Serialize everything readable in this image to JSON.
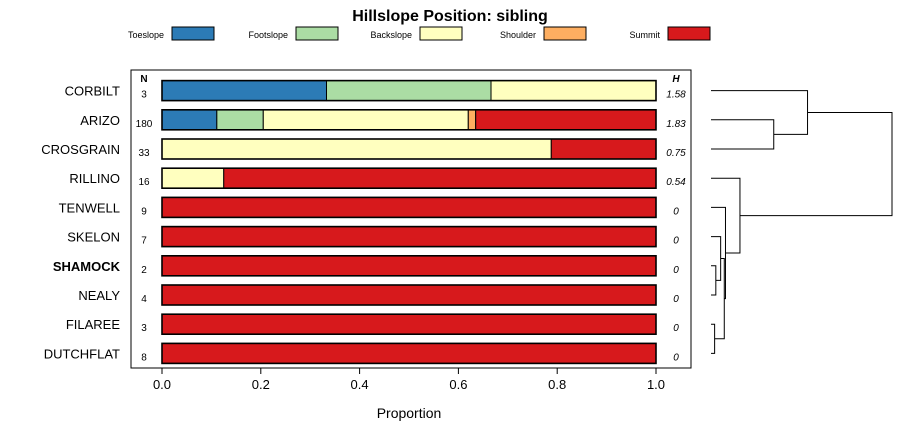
{
  "chart_data": {
    "type": "stacked-bar-horizontal",
    "title": "Hillslope Position: sibling",
    "xlabel": "Proportion",
    "xlim": [
      0,
      1
    ],
    "xticks": [
      "0.0",
      "0.2",
      "0.4",
      "0.6",
      "0.8",
      "1.0"
    ],
    "n_header": "N",
    "h_header": "H",
    "highlight": "SHAMOCK",
    "legend": [
      {
        "name": "Toeslope",
        "color": "#2c7bb6"
      },
      {
        "name": "Footslope",
        "color": "#abdda4"
      },
      {
        "name": "Backslope",
        "color": "#ffffbf"
      },
      {
        "name": "Shoulder",
        "color": "#fdae61"
      },
      {
        "name": "Summit",
        "color": "#d7191c"
      }
    ],
    "categories": [
      "CORBILT",
      "ARIZO",
      "CROSGRAIN",
      "RILLINO",
      "TENWELL",
      "SKELON",
      "SHAMOCK",
      "NEALY",
      "FILAREE",
      "DUTCHFLAT"
    ],
    "n": [
      "3",
      "180",
      "33",
      "16",
      "9",
      "7",
      "2",
      "4",
      "3",
      "8"
    ],
    "h": [
      "1.58",
      "1.83",
      "0.75",
      "0.54",
      "0",
      "0",
      "0",
      "0",
      "0",
      "0"
    ],
    "proportions": [
      [
        0.333,
        0.333,
        0.334,
        0,
        0
      ],
      [
        0.111,
        0.094,
        0.415,
        0.015,
        0.365
      ],
      [
        0,
        0,
        0.788,
        0,
        0.212
      ],
      [
        0,
        0,
        0.125,
        0,
        0.875
      ],
      [
        0,
        0,
        0,
        0,
        1
      ],
      [
        0,
        0,
        0,
        0,
        1
      ],
      [
        0,
        0,
        0,
        0,
        1
      ],
      [
        0,
        0,
        0,
        0,
        1
      ],
      [
        0,
        0,
        0,
        0,
        1
      ],
      [
        0,
        0,
        0,
        0,
        1
      ]
    ],
    "dendrogram_merges": [
      [
        -9,
        -10,
        0.015
      ],
      [
        -7,
        -8,
        0.02
      ],
      [
        -6,
        2,
        0.04
      ],
      [
        1,
        3,
        0.055
      ],
      [
        -5,
        4,
        0.06
      ],
      [
        -4,
        5,
        0.12
      ],
      [
        -2,
        -3,
        0.26
      ],
      [
        -1,
        7,
        0.4
      ],
      [
        6,
        8,
        0.75
      ]
    ]
  }
}
